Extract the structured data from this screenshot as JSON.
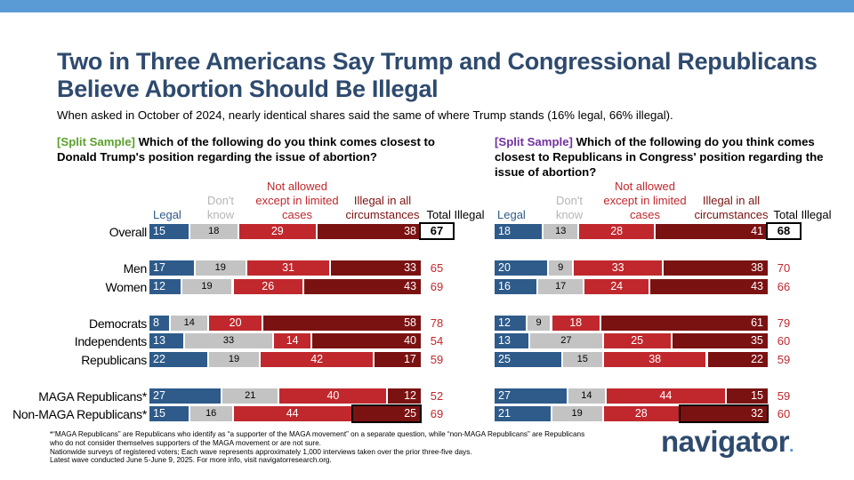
{
  "title": "Two in Three Americans Say Trump and Congressional Republicans Believe Abortion Should Be Illegal",
  "subtitle": "When asked in October of 2024, nearly identical shares said the same of where Trump stands (16% legal, 66% illegal).",
  "colors": {
    "legal": "#2e5b8a",
    "dont_know": "#c3c3c3",
    "not_allowed": "#c0282d",
    "illegal_all": "#7b1212",
    "title": "#2e4a6e",
    "accent": "#5b9bd5"
  },
  "chart_data": [
    {
      "type": "bar",
      "orientation": "horizontal-stacked",
      "tag": "[Split Sample]",
      "question": "Which of the following do you think comes closest to Donald Trump's position regarding the issue of abortion?",
      "headers": {
        "legal": "Legal",
        "dont_know": "Don't know",
        "not_allowed": "Not allowed except in limited cases",
        "illegal_all": "Illegal in all circumstances",
        "total": "Total Illegal"
      },
      "categories": [
        "Overall",
        "Men",
        "Women",
        "Democrats",
        "Independents",
        "Republicans",
        "MAGA Republicans*",
        "Non-MAGA Republicans*"
      ],
      "series": [
        {
          "name": "Legal",
          "values": [
            15,
            17,
            12,
            8,
            13,
            22,
            27,
            15
          ]
        },
        {
          "name": "Don't know",
          "values": [
            18,
            19,
            19,
            14,
            33,
            19,
            21,
            16
          ]
        },
        {
          "name": "Not allowed except in limited cases",
          "values": [
            29,
            31,
            26,
            20,
            14,
            42,
            40,
            44
          ]
        },
        {
          "name": "Illegal in all circumstances",
          "values": [
            38,
            33,
            43,
            58,
            40,
            17,
            12,
            25
          ]
        }
      ],
      "total_illegal": [
        67,
        65,
        69,
        78,
        54,
        59,
        52,
        69
      ],
      "highlighted_row": 7
    },
    {
      "type": "bar",
      "orientation": "horizontal-stacked",
      "tag": "[Split Sample]",
      "question": "Which of the following do you think comes closest to Republicans in Congress' position regarding the issue of abortion?",
      "headers": {
        "legal": "Legal",
        "dont_know": "Don't know",
        "not_allowed": "Not allowed except in limited cases",
        "illegal_all": "Illegal in all circumstances",
        "total": "Total Illegal"
      },
      "categories": [
        "Overall",
        "Men",
        "Women",
        "Democrats",
        "Independents",
        "Republicans",
        "MAGA Republicans*",
        "Non-MAGA Republicans*"
      ],
      "series": [
        {
          "name": "Legal",
          "values": [
            18,
            20,
            16,
            12,
            13,
            25,
            27,
            21
          ]
        },
        {
          "name": "Don't know",
          "values": [
            13,
            9,
            17,
            9,
            27,
            15,
            14,
            19
          ]
        },
        {
          "name": "Not allowed except in limited cases",
          "values": [
            28,
            33,
            24,
            18,
            25,
            38,
            44,
            28
          ]
        },
        {
          "name": "Illegal in all circumstances",
          "values": [
            41,
            38,
            43,
            61,
            35,
            22,
            15,
            32
          ]
        }
      ],
      "total_illegal": [
        68,
        70,
        66,
        79,
        60,
        59,
        59,
        60
      ],
      "highlighted_row": 7
    }
  ],
  "footnote": [
    "*“MAGA Republicans” are Republicans who identify as “a supporter of the MAGA movement” on a separate question, while “non-MAGA Republicans” are Republicans who do not consider themselves supporters of the MAGA movement or are not sure.",
    "Nationwide surveys of registered voters; Each wave represents approximately 1,000 interviews taken over the prior three-five days.",
    "Latest wave conducted June 5-June 9, 2025. For more info, visit navigatorresearch.org."
  ],
  "logo": {
    "text": "navigator",
    "dot": "."
  }
}
